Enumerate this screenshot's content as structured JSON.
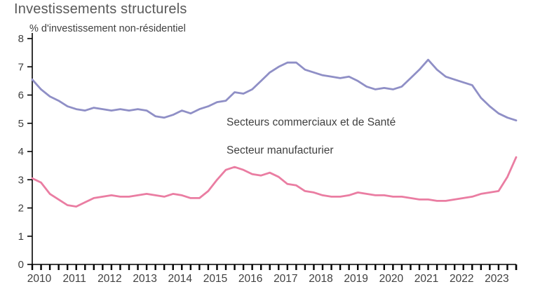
{
  "title": "Investissements structurels",
  "axis_note": "% d'investissement non-résidentiel",
  "colors": {
    "series1": "#8f8fc6",
    "series2": "#ea7da2",
    "axis": "#000000",
    "tick_label": "#404040",
    "title": "#595959"
  },
  "chart_data": {
    "type": "line",
    "title": "Investissements structurels",
    "subtitle": "% d'investissement non-résidentiel",
    "ylim": [
      0,
      8
    ],
    "y_ticks": [
      0,
      1,
      2,
      3,
      4,
      5,
      6,
      7,
      8
    ],
    "x_frequency": "quarterly",
    "x_tick_labels": [
      "2010",
      "2011",
      "2012",
      "2013",
      "2014",
      "2015",
      "2016",
      "2017",
      "2018",
      "2019",
      "2020",
      "2021",
      "2022",
      "2023"
    ],
    "grid": false,
    "legend_position": "inside-plot",
    "series": [
      {
        "name": "Secteurs commerciaux et de Santé",
        "color": "#8f8fc6",
        "values": [
          6.55,
          6.2,
          5.95,
          5.8,
          5.6,
          5.5,
          5.45,
          5.55,
          5.5,
          5.45,
          5.5,
          5.45,
          5.5,
          5.45,
          5.25,
          5.2,
          5.3,
          5.45,
          5.35,
          5.5,
          5.6,
          5.75,
          5.8,
          6.1,
          6.05,
          6.2,
          6.5,
          6.8,
          7.0,
          7.15,
          7.15,
          6.9,
          6.8,
          6.7,
          6.65,
          6.6,
          6.65,
          6.5,
          6.3,
          6.2,
          6.25,
          6.2,
          6.3,
          6.6,
          6.9,
          7.25,
          6.9,
          6.65,
          6.55,
          6.45,
          6.35,
          5.9,
          5.6,
          5.35,
          5.2,
          5.1
        ]
      },
      {
        "name": "Secteur manufacturier",
        "color": "#ea7da2",
        "values": [
          3.05,
          2.9,
          2.5,
          2.3,
          2.1,
          2.05,
          2.2,
          2.35,
          2.4,
          2.45,
          2.4,
          2.4,
          2.45,
          2.5,
          2.45,
          2.4,
          2.5,
          2.45,
          2.35,
          2.35,
          2.6,
          3.0,
          3.35,
          3.45,
          3.35,
          3.2,
          3.15,
          3.25,
          3.1,
          2.85,
          2.8,
          2.6,
          2.55,
          2.45,
          2.4,
          2.4,
          2.45,
          2.55,
          2.5,
          2.45,
          2.45,
          2.4,
          2.4,
          2.35,
          2.3,
          2.3,
          2.25,
          2.25,
          2.3,
          2.35,
          2.4,
          2.5,
          2.55,
          2.6,
          3.1,
          3.8
        ]
      }
    ]
  }
}
